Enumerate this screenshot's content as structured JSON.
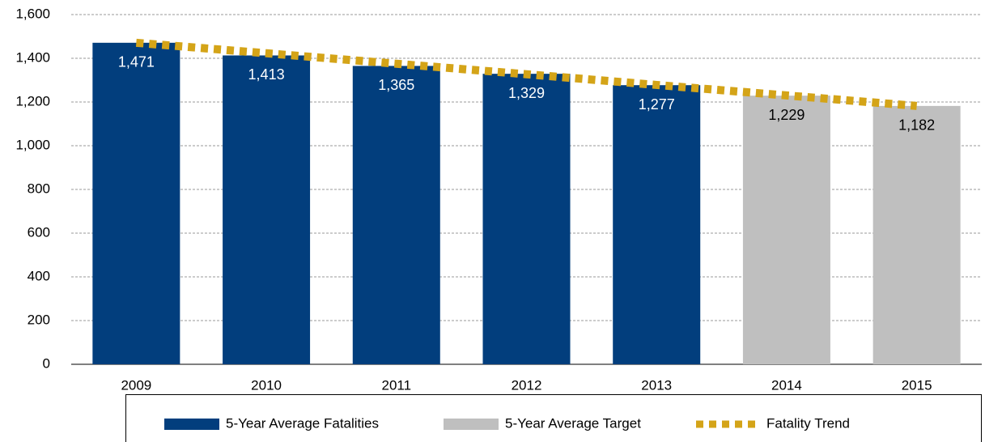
{
  "chart_data": {
    "type": "bar",
    "categories": [
      "2009",
      "2010",
      "2011",
      "2012",
      "2013",
      "2014",
      "2015"
    ],
    "series": [
      {
        "name": "5-Year Average Fatalities",
        "type": "bar",
        "color": "#023e7d",
        "label_color": "#ffffff",
        "values": [
          1471,
          1413,
          1365,
          1329,
          1277,
          null,
          null
        ],
        "value_labels": [
          "1,471",
          "1,413",
          "1,365",
          "1,329",
          "1,277",
          null,
          null
        ]
      },
      {
        "name": "5-Year Average Target",
        "type": "bar",
        "color": "#bfbfbf",
        "label_color": "#000000",
        "values": [
          null,
          null,
          null,
          null,
          null,
          1229,
          1182
        ],
        "value_labels": [
          null,
          null,
          null,
          null,
          null,
          "1,229",
          "1,182"
        ]
      },
      {
        "name": "Fatality Trend",
        "type": "line",
        "style": "dotted",
        "color": "#d4a418",
        "values": [
          1471,
          1423,
          1375,
          1327,
          1278,
          1230,
          1182
        ]
      }
    ],
    "ylim": [
      0,
      1600
    ],
    "yticks": [
      0,
      200,
      400,
      600,
      800,
      {
        "value": 1000,
        "label": "1,000"
      },
      {
        "value": 1200,
        "label": "1,200"
      },
      {
        "value": 1400,
        "label": "1,400"
      },
      {
        "value": 1600,
        "label": "1,600"
      }
    ],
    "grid": true,
    "legend": "bottom"
  }
}
